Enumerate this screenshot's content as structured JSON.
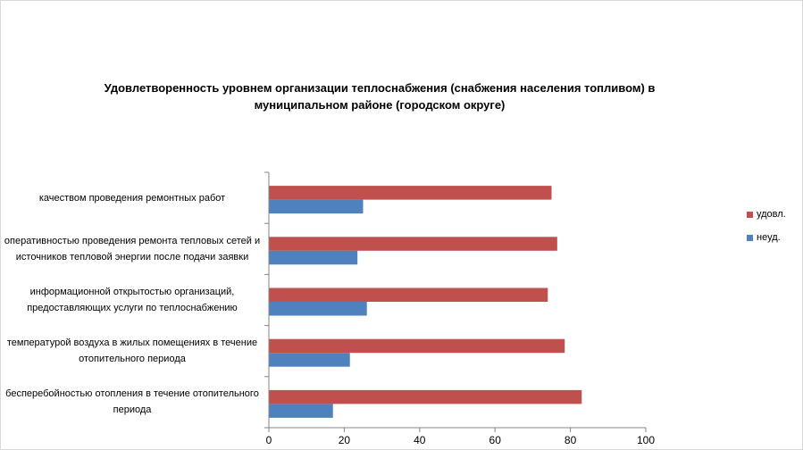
{
  "chart_data": {
    "type": "bar",
    "orientation": "horizontal",
    "title": "Удовлетворенность уровнем организации теплоснабжения (снабжения населения топливом) в муниципальном районе (городском округе)",
    "title_lines": [
      "Удовлетворенность уровнем организации теплоснабжения (снабжения населения топливом) в",
      "муниципальном районе (городском округе)"
    ],
    "categories": [
      "качеством проведения ремонтных работ",
      "оперативностью проведения ремонта тепловых сетей и источников тепловой энергии после подачи заявки",
      "информационной открытостью организаций, предоставляющих услуги по теплоснабжению",
      "температурой воздуха в жилых помещениях в течение отопительного периода",
      "бесперебойностью отопления в течение отопительного периода"
    ],
    "series": [
      {
        "name": "удовл.",
        "color": "#c0504d",
        "values": [
          75,
          76.5,
          74,
          78.5,
          83
        ]
      },
      {
        "name": "неуд.",
        "color": "#4f81bd",
        "values": [
          25,
          23.5,
          26,
          21.5,
          17
        ]
      }
    ],
    "xlim": [
      0,
      100
    ],
    "xticks": [
      "0",
      "20",
      "40",
      "60",
      "80",
      "100"
    ],
    "grid": false,
    "legend_position": "right"
  }
}
